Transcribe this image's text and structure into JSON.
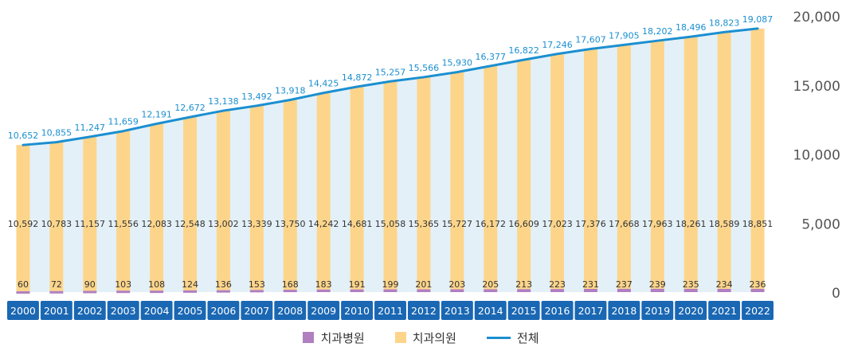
{
  "chart_data": {
    "type": "bar",
    "stacked": true,
    "categories": [
      "2000",
      "2001",
      "2002",
      "2003",
      "2004",
      "2005",
      "2006",
      "2007",
      "2008",
      "2009",
      "2010",
      "2011",
      "2012",
      "2013",
      "2014",
      "2015",
      "2016",
      "2017",
      "2018",
      "2019",
      "2020",
      "2021",
      "2022"
    ],
    "series": [
      {
        "name": "치과병원",
        "kind": "bar",
        "color": "#b07fc0",
        "values": [
          60,
          72,
          90,
          103,
          108,
          124,
          136,
          153,
          168,
          183,
          191,
          199,
          201,
          203,
          205,
          213,
          223,
          231,
          237,
          239,
          235,
          234,
          236
        ]
      },
      {
        "name": "치과의원",
        "kind": "bar",
        "color": "#fdd58a",
        "values": [
          10592,
          10783,
          11157,
          11556,
          12083,
          12548,
          13002,
          13339,
          13750,
          14242,
          14681,
          15058,
          15365,
          15727,
          16172,
          16609,
          17023,
          17376,
          17668,
          17963,
          18261,
          18589,
          18851
        ]
      },
      {
        "name": "전체",
        "kind": "line",
        "color": "#1b8fd0",
        "values": [
          10652,
          10855,
          11247,
          11659,
          12191,
          12672,
          13138,
          13492,
          13918,
          14425,
          14872,
          15257,
          15566,
          15930,
          16377,
          16822,
          17246,
          17607,
          17905,
          18202,
          18496,
          18823,
          19087
        ]
      }
    ],
    "y_ticks": [
      "0",
      "5,000",
      "10,000",
      "15,000",
      "20,000"
    ],
    "ylim": [
      0,
      20000
    ],
    "grid": false,
    "legend_position": "bottom-center",
    "colors": {
      "background_band": "#e3f0f8",
      "year_box": "#1a67b3",
      "year_text": "#ffffff"
    }
  }
}
